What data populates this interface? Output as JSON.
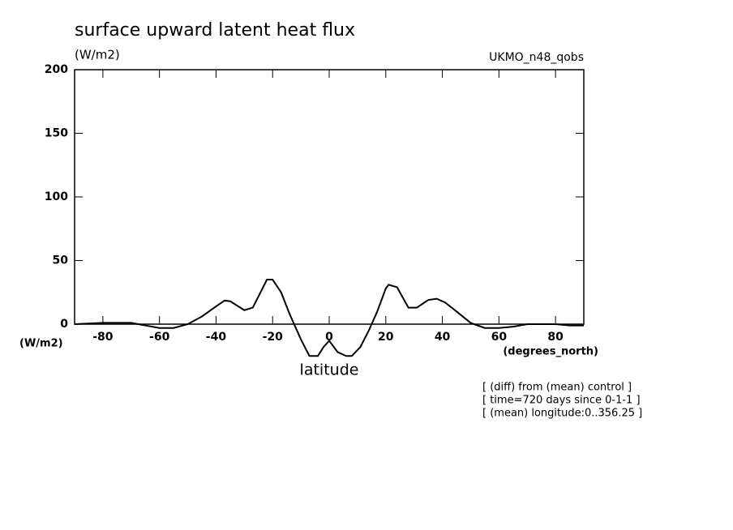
{
  "chart_data": {
    "type": "line",
    "title": "surface upward latent heat flux",
    "y_unit_top": "(W/m2)",
    "y_unit_side": "(W/m2)",
    "dataset": "UKMO_n48_qobs",
    "x_label": "latitude",
    "x_unit": "(degrees_north)",
    "annotations": [
      "[ (diff) from (mean) control ]",
      "[ time=720 days since 0-1-1 ]",
      "[ (mean) longitude:0..356.25 ]"
    ],
    "x": [
      -90,
      -80,
      -70,
      -60,
      -55,
      -50,
      -45,
      -40,
      -37,
      -35,
      -30,
      -27,
      -22,
      -20,
      -17,
      -14,
      -10,
      -7,
      -4,
      -2,
      0,
      3,
      6,
      8,
      11,
      14,
      17,
      20,
      21,
      24,
      28,
      31,
      35,
      38,
      41,
      45,
      50,
      55,
      60,
      65,
      70,
      80,
      85,
      90
    ],
    "series": [
      {
        "color": "#000000",
        "values": [
          0,
          1,
          1,
          -3,
          -3,
          0,
          6,
          14,
          18.5,
          18,
          11,
          13,
          35,
          35,
          25,
          8,
          -12,
          -25,
          -25,
          -18,
          -13,
          -22,
          -25,
          -25,
          -18,
          -5,
          10,
          28,
          31,
          29,
          13,
          13,
          19,
          20,
          17,
          10,
          1,
          -3,
          -3,
          -2,
          0,
          0,
          -1,
          -1
        ]
      }
    ],
    "xlim": [
      -90,
      90
    ],
    "xticks": [
      -80,
      -60,
      -40,
      -20,
      0,
      20,
      40,
      60,
      80
    ],
    "ylim": [
      0,
      200
    ],
    "yticks": [
      0,
      50,
      100,
      150,
      200
    ]
  }
}
